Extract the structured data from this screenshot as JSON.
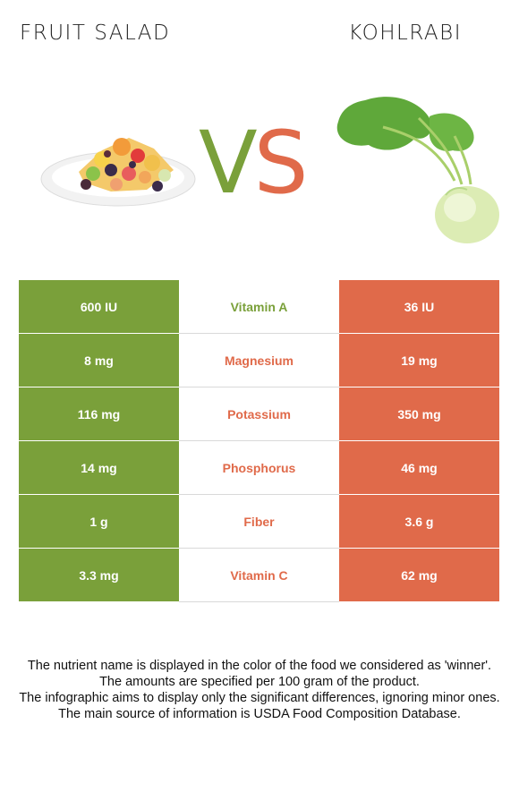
{
  "header": {
    "left_title": "FRUIT SALAD",
    "right_title": "KOHLRABI",
    "vs_v": "V",
    "vs_s": "S"
  },
  "colors": {
    "left": "#7aa03a",
    "right": "#e06a4a"
  },
  "images": {
    "left": "fruit-salad-image",
    "right": "kohlrabi-image"
  },
  "rows": [
    {
      "left": "600 IU",
      "nutrient": "Vitamin A",
      "right": "36 IU",
      "winner": "left"
    },
    {
      "left": "8 mg",
      "nutrient": "Magnesium",
      "right": "19 mg",
      "winner": "right"
    },
    {
      "left": "116 mg",
      "nutrient": "Potassium",
      "right": "350 mg",
      "winner": "right"
    },
    {
      "left": "14 mg",
      "nutrient": "Phosphorus",
      "right": "46 mg",
      "winner": "right"
    },
    {
      "left": "1 g",
      "nutrient": "Fiber",
      "right": "3.6 g",
      "winner": "right"
    },
    {
      "left": "3.3 mg",
      "nutrient": "Vitamin C",
      "right": "62 mg",
      "winner": "right"
    }
  ],
  "footer": {
    "line1": "The nutrient name is displayed in the color of the food we considered as 'winner'.",
    "line2": "The amounts are specified per 100 gram of the product.",
    "line3": "The infographic aims to display only the significant differences, ignoring minor ones.",
    "line4": "The main source of information is USDA Food Composition Database."
  }
}
